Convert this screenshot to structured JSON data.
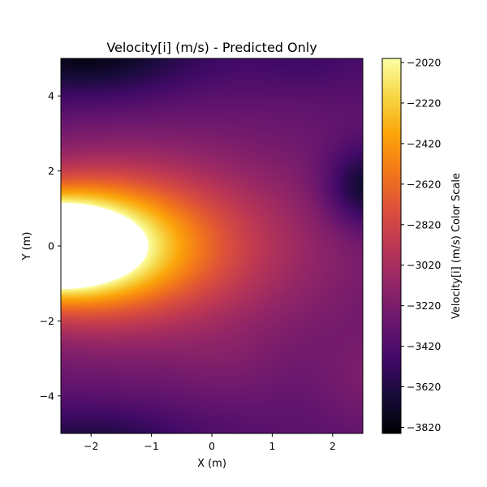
{
  "chart_data": {
    "type": "heatmap",
    "title": "Velocity[i] (m/s) - Predicted Only",
    "xlabel": "X (m)",
    "ylabel": "Y (m)",
    "xlim": [
      -2.5,
      2.5
    ],
    "ylim": [
      -5,
      5
    ],
    "x_ticks": [
      -2,
      -1,
      0,
      1,
      2
    ],
    "y_ticks": [
      -4,
      -2,
      0,
      2,
      4
    ],
    "x_tick_labels": [
      "−2",
      "−1",
      "0",
      "1",
      "2"
    ],
    "y_tick_labels": [
      "−4",
      "−2",
      "0",
      "2",
      "4"
    ],
    "colormap": "inferno",
    "colorbar": {
      "label": "Velocity[i] (m/s) Color Scale",
      "range": [
        -3850,
        -2000
      ],
      "ticks": [
        -2020,
        -2220,
        -2420,
        -2620,
        -2820,
        -3020,
        -3220,
        -3420,
        -3620,
        -3820
      ],
      "tick_labels": [
        "−2020",
        "−2220",
        "−2420",
        "−2620",
        "−2820",
        "−3020",
        "−3220",
        "−3420",
        "−3620",
        "−3820"
      ]
    },
    "obstacle": {
      "shape": "ellipse",
      "center": [
        -2.5,
        0
      ],
      "semi_axis_x": 1.45,
      "semi_axis_y": 1.15,
      "fill": "#ffffff"
    },
    "field_features": [
      {
        "description": "maximum near leading edge of obstacle",
        "x": -1.0,
        "y": 0.0,
        "value": -2020
      },
      {
        "description": "minimum near top-left corner",
        "x": -2.3,
        "y": 4.9,
        "value": -3820
      },
      {
        "description": "local minimum on right edge",
        "x": 2.5,
        "y": 1.6,
        "value": -3800
      },
      {
        "description": "dark region bottom-left",
        "x": -2.0,
        "y": -4.9,
        "value": -3700
      }
    ]
  }
}
